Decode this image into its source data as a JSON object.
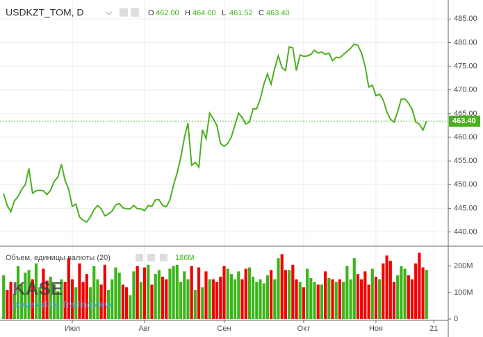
{
  "chart_data": {
    "type": "line",
    "symbol": "USDKZT_TOM, D",
    "ohlc": [
      {
        "label": "O",
        "value": "462.00"
      },
      {
        "label": "H",
        "value": "464.00"
      },
      {
        "label": "L",
        "value": "461.52"
      },
      {
        "label": "C",
        "value": "463.40"
      }
    ],
    "color": "#4caf1f",
    "values": [
      448.1,
      445.6,
      444.3,
      446.6,
      447.5,
      449.0,
      450.0,
      453.4,
      448.2,
      448.7,
      448.8,
      448.7,
      447.9,
      448.8,
      450.7,
      451.6,
      454.3,
      450.9,
      449.0,
      445.4,
      445.9,
      443.2,
      442.5,
      442.1,
      443.2,
      444.7,
      445.6,
      444.9,
      443.4,
      443.8,
      444.4,
      445.7,
      446.0,
      445.1,
      444.9,
      444.9,
      445.6,
      444.9,
      444.9,
      444.5,
      445.6,
      445.4,
      446.8,
      446.8,
      445.6,
      445.3,
      446.8,
      449.9,
      452.5,
      455.7,
      459.9,
      463.0,
      454.1,
      454.7,
      453.7,
      461.6,
      459.7,
      465.1,
      463.9,
      462.5,
      458.7,
      458.1,
      458.7,
      460.1,
      462.6,
      465.1,
      464.2,
      462.8,
      463.2,
      466.0,
      466.0,
      468.1,
      471.2,
      473.4,
      471.2,
      474.6,
      477.2,
      474.7,
      474.1,
      479.1,
      478.9,
      474.1,
      477.4,
      477.1,
      477.2,
      477.5,
      478.4,
      477.8,
      478.0,
      477.5,
      477.8,
      476.2,
      476.9,
      476.8,
      477.5,
      478.1,
      478.8,
      479.7,
      479.4,
      477.8,
      475.0,
      470.6,
      471.0,
      468.8,
      469.1,
      467.9,
      465.4,
      463.8,
      463.2,
      465.4,
      468.1,
      468.1,
      467.2,
      465.9,
      463.2,
      462.8,
      461.5,
      463.4
    ],
    "xlim": [
      -1,
      123
    ],
    "xticks": [
      {
        "value": 19,
        "label": "Июл"
      },
      {
        "value": 39,
        "label": "Авг"
      },
      {
        "value": 61,
        "label": "Сен"
      },
      {
        "value": 83,
        "label": "Окт"
      },
      {
        "value": 103,
        "label": "Ноя"
      },
      {
        "value": 119,
        "label": "21"
      }
    ],
    "ylim": [
      437,
      489
    ],
    "yticks": [
      {
        "value": 440,
        "label": "440.00"
      },
      {
        "value": 445,
        "label": "445.00"
      },
      {
        "value": 450,
        "label": "450.00"
      },
      {
        "value": 455,
        "label": "455.00"
      },
      {
        "value": 460,
        "label": "460.00"
      },
      {
        "value": 465,
        "label": "465.00"
      },
      {
        "value": 470,
        "label": "470.00"
      },
      {
        "value": 475,
        "label": "475.00"
      },
      {
        "value": 480,
        "label": "480.00"
      },
      {
        "value": 485,
        "label": "485.00"
      }
    ],
    "last_price": {
      "value": 463.4,
      "label": "463.40"
    },
    "volume": {
      "title": "Объем, единицы валюты (20)",
      "last_label": "186M",
      "up_color": "#3cb51a",
      "down_color": "#f20000",
      "values": [
        165,
        110,
        140,
        95,
        200,
        130,
        175,
        185,
        150,
        210,
        120,
        190,
        145,
        160,
        130,
        105,
        150,
        140,
        230,
        150,
        120,
        210,
        140,
        170,
        120,
        200,
        150,
        130,
        205,
        110,
        150,
        195,
        175,
        130,
        120,
        90,
        180,
        200,
        140,
        195,
        205,
        130,
        170,
        185,
        160,
        150,
        190,
        200,
        205,
        140,
        180,
        150,
        200,
        110,
        195,
        120,
        180,
        150,
        150,
        140,
        160,
        200,
        190,
        170,
        150,
        180,
        150,
        190,
        195,
        160,
        140,
        150,
        135,
        165,
        185,
        150,
        230,
        245,
        185,
        185,
        205,
        150,
        140,
        120,
        190,
        155,
        140,
        130,
        130,
        180,
        155,
        150,
        140,
        150,
        140,
        200,
        150,
        230,
        170,
        150,
        180,
        130,
        190,
        160,
        150,
        210,
        240,
        220,
        140,
        165,
        200,
        190,
        165,
        150,
        210,
        250,
        195,
        186
      ],
      "ylim": [
        -5,
        270
      ],
      "yticks": [
        0,
        {
          "value": 100,
          "label": "100M"
        },
        {
          "value": 200,
          "label": "200M"
        }
      ]
    },
    "watermark": {
      "brand": "KASE",
      "note": "powered by TradingView"
    },
    "grid": true
  }
}
